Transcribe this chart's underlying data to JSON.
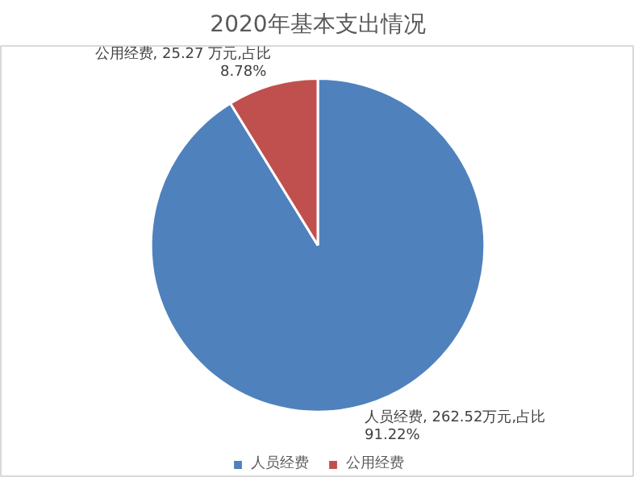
{
  "chart_data": {
    "type": "pie",
    "title": "2020年基本支出情况",
    "categories": [
      "人员经费",
      "公用经费"
    ],
    "values": [
      262.52,
      25.27
    ],
    "colors": [
      "#4f81bd",
      "#c0504d"
    ],
    "value_labels": [
      "人员经费, 262.52万元,占比91.22%",
      "公用经费, 25.27 万元,占比 8.78%"
    ],
    "legend": "bottom"
  }
}
